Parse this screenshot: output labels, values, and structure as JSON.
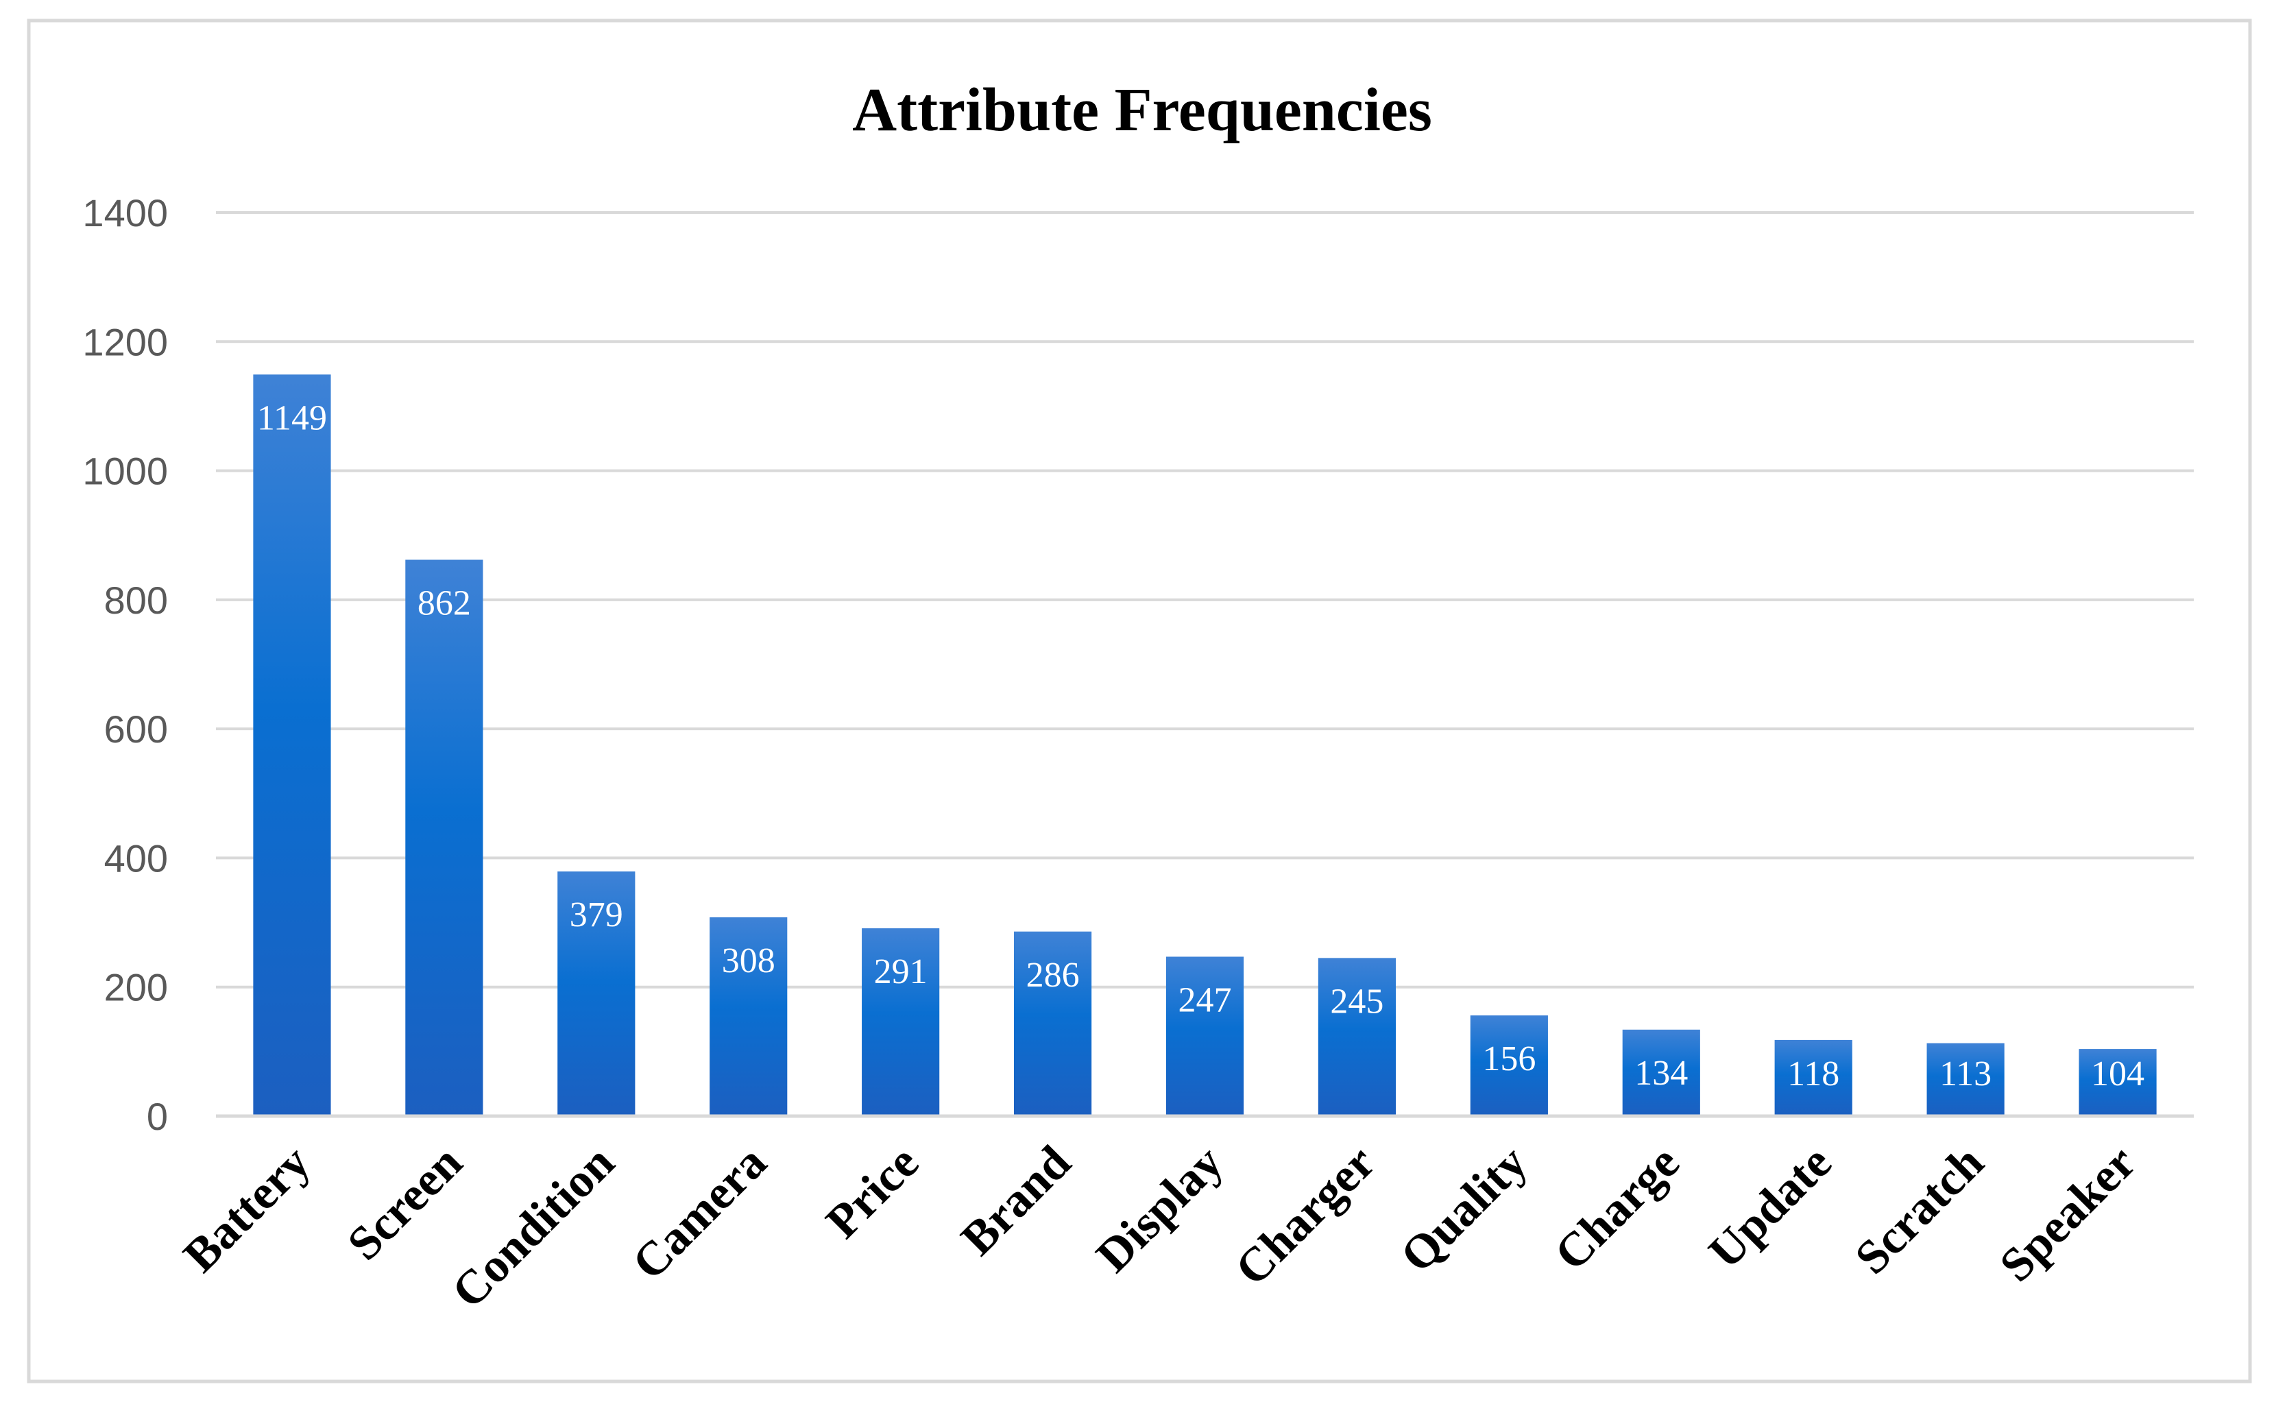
{
  "chart_data": {
    "type": "bar",
    "title": "Attribute Frequencies",
    "xlabel": "",
    "ylabel": "",
    "categories": [
      "Battery",
      "Screen",
      "Condition",
      "Camera",
      "Price",
      "Brand",
      "Display",
      "Charger",
      "Quality",
      "Charge",
      "Update",
      "Scratch",
      "Speaker"
    ],
    "values": [
      1149,
      862,
      379,
      308,
      291,
      286,
      247,
      245,
      156,
      134,
      118,
      113,
      104
    ],
    "value_labels": [
      "1149",
      "862",
      "379",
      "308",
      "291",
      "286",
      "247",
      "245",
      "156",
      "134",
      "118",
      "113",
      "104"
    ],
    "ylim": [
      0,
      1400
    ],
    "yticks": [
      0,
      200,
      400,
      600,
      800,
      1000,
      1200,
      1400
    ],
    "ytick_labels": [
      "0",
      "200",
      "400",
      "600",
      "800",
      "1000",
      "1200",
      "1400"
    ],
    "grid": true,
    "legend": "none",
    "colors": {
      "bar_top": "#3f82d6",
      "bar_mid": "#0a6fd1",
      "bar_bottom": "#1c5fc0",
      "grid": "#d9d9d9",
      "frame": "#d9d9d9"
    }
  }
}
